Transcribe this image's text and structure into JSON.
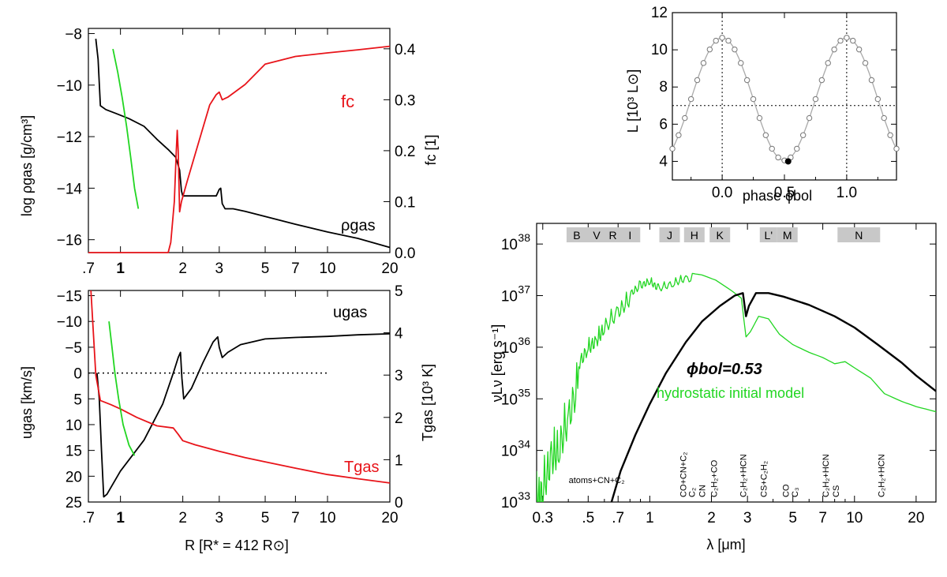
{
  "colors": {
    "black": "#000000",
    "red": "#e8141a",
    "green": "#22d622",
    "grey": "#aaaaaa",
    "band": "#c8c8c8"
  },
  "chart_data": [
    {
      "id": "top-left",
      "type": "line",
      "title": "",
      "xlabel": "",
      "xscale": "log",
      "xlim": [
        0.7,
        20
      ],
      "x_ticklabels": [
        ".7",
        "1",
        "2",
        "3",
        "5",
        "7",
        "10",
        "20"
      ],
      "ylabel": "log ρgas   [g/cm³]",
      "ylim": [
        -16.5,
        -7.8
      ],
      "y_ticklabels": [
        "-16",
        "-14",
        "-12",
        "-10",
        "-8"
      ],
      "y2label": "fc   [1]",
      "y2lim": [
        0,
        0.44
      ],
      "y2_ticklabels": [
        "0.0",
        "0.1",
        "0.2",
        "0.3",
        "0.4"
      ],
      "annotations": [
        "fc",
        "ρgas"
      ],
      "series": [
        {
          "name": "ρgas",
          "axis": "left",
          "color": "#000000",
          "points": [
            [
              0.76,
              -8.2
            ],
            [
              0.78,
              -9.0
            ],
            [
              0.8,
              -10.8
            ],
            [
              0.85,
              -10.95
            ],
            [
              0.95,
              -11.1
            ],
            [
              1.1,
              -11.3
            ],
            [
              1.3,
              -11.6
            ],
            [
              1.5,
              -12.1
            ],
            [
              1.7,
              -12.5
            ],
            [
              1.85,
              -12.8
            ],
            [
              1.93,
              -13.3
            ],
            [
              1.97,
              -14.1
            ],
            [
              2.0,
              -14.3
            ],
            [
              2.3,
              -14.3
            ],
            [
              2.6,
              -14.3
            ],
            [
              2.9,
              -14.3
            ],
            [
              3.0,
              -14.05
            ],
            [
              3.05,
              -14.0
            ],
            [
              3.1,
              -14.6
            ],
            [
              3.2,
              -14.8
            ],
            [
              3.5,
              -14.8
            ],
            [
              4.0,
              -14.9
            ],
            [
              5,
              -15.1
            ],
            [
              7,
              -15.4
            ],
            [
              10,
              -15.7
            ],
            [
              14,
              -15.95
            ],
            [
              20,
              -16.3
            ]
          ]
        },
        {
          "name": "fc",
          "axis": "right",
          "color": "#e8141a",
          "points": [
            [
              0.7,
              0.0
            ],
            [
              1.7,
              0.0
            ],
            [
              1.75,
              0.02
            ],
            [
              1.82,
              0.1
            ],
            [
              1.86,
              0.2
            ],
            [
              1.88,
              0.24
            ],
            [
              1.9,
              0.2
            ],
            [
              1.93,
              0.08
            ],
            [
              1.97,
              0.1
            ],
            [
              2.1,
              0.14
            ],
            [
              2.4,
              0.22
            ],
            [
              2.7,
              0.29
            ],
            [
              2.9,
              0.31
            ],
            [
              3.0,
              0.315
            ],
            [
              3.1,
              0.3
            ],
            [
              3.3,
              0.305
            ],
            [
              4.0,
              0.33
            ],
            [
              5,
              0.37
            ],
            [
              7,
              0.385
            ],
            [
              10,
              0.392
            ],
            [
              14,
              0.398
            ],
            [
              20,
              0.405
            ]
          ]
        },
        {
          "name": "green",
          "axis": "left",
          "color": "#22d622",
          "points": [
            [
              0.92,
              -8.6
            ],
            [
              0.97,
              -9.5
            ],
            [
              1.02,
              -10.5
            ],
            [
              1.07,
              -11.6
            ],
            [
              1.12,
              -12.8
            ],
            [
              1.17,
              -14.0
            ],
            [
              1.22,
              -14.8
            ]
          ]
        }
      ]
    },
    {
      "id": "bottom-left",
      "type": "line",
      "title": "",
      "xlabel": "R    [R* = 412 R⊙]",
      "xscale": "log",
      "xlim": [
        0.7,
        20
      ],
      "x_ticklabels": [
        ".7",
        "1",
        "2",
        "3",
        "5",
        "7",
        "10",
        "20"
      ],
      "ylabel": "ugas    [km/s]",
      "ylim_inverted": [
        -16,
        25
      ],
      "y_ticklabels": [
        "-15",
        "-10",
        "-5",
        "0",
        "5",
        "10",
        "15",
        "20",
        "25"
      ],
      "y2label": "Tgas   [10³ K]",
      "y2lim": [
        0,
        5
      ],
      "y2_ticklabels": [
        "0",
        "1",
        "2",
        "3",
        "4",
        "5"
      ],
      "annotations": [
        "ugas",
        "Tgas"
      ],
      "series": [
        {
          "name": "ugas",
          "axis": "left",
          "color": "#000000",
          "points": [
            [
              0.77,
              0.0
            ],
            [
              0.79,
              5
            ],
            [
              0.81,
              15
            ],
            [
              0.83,
              24
            ],
            [
              0.86,
              23.5
            ],
            [
              1.0,
              19
            ],
            [
              1.3,
              13
            ],
            [
              1.6,
              6
            ],
            [
              1.8,
              0
            ],
            [
              1.9,
              -3
            ],
            [
              1.95,
              -4
            ],
            [
              1.98,
              1
            ],
            [
              2.02,
              5
            ],
            [
              2.2,
              3
            ],
            [
              2.5,
              -2
            ],
            [
              2.8,
              -6
            ],
            [
              2.95,
              -7
            ],
            [
              3.0,
              -5
            ],
            [
              3.1,
              -3
            ],
            [
              3.3,
              -4
            ],
            [
              3.8,
              -5.5
            ],
            [
              5,
              -6.6
            ],
            [
              7,
              -6.9
            ],
            [
              10,
              -7.1
            ],
            [
              14,
              -7.4
            ],
            [
              20,
              -7.6
            ]
          ]
        },
        {
          "name": "Tgas",
          "axis": "right",
          "color": "#e8141a",
          "points": [
            [
              0.72,
              5.0
            ],
            [
              0.74,
              4.0
            ],
            [
              0.76,
              3.0
            ],
            [
              0.8,
              2.4
            ],
            [
              0.9,
              2.3
            ],
            [
              1.0,
              2.2
            ],
            [
              1.2,
              2.0
            ],
            [
              1.5,
              1.8
            ],
            [
              1.8,
              1.75
            ],
            [
              1.9,
              1.6
            ],
            [
              2.0,
              1.45
            ],
            [
              2.3,
              1.35
            ],
            [
              3,
              1.2
            ],
            [
              4,
              1.05
            ],
            [
              5,
              0.95
            ],
            [
              7,
              0.8
            ],
            [
              10,
              0.65
            ],
            [
              14,
              0.55
            ],
            [
              20,
              0.45
            ]
          ]
        },
        {
          "name": "green",
          "axis": "left",
          "color": "#22d622",
          "points": [
            [
              0.88,
              -10
            ],
            [
              0.91,
              -5
            ],
            [
              0.94,
              0
            ],
            [
              0.98,
              5
            ],
            [
              1.03,
              10
            ],
            [
              1.1,
              14
            ],
            [
              1.17,
              16
            ]
          ]
        }
      ]
    },
    {
      "id": "top-right",
      "type": "line",
      "title": "",
      "xlabel": "phase ϕbol",
      "xlim": [
        -0.4,
        1.4
      ],
      "x_ticklabels": [
        "0.0",
        "0.5",
        "1.0"
      ],
      "ylabel": "L   [10³ L⊙]",
      "ylim": [
        3,
        12
      ],
      "y_ticklabels": [
        "4",
        "6",
        "8",
        "10",
        "12"
      ],
      "guides": {
        "vlines": [
          0.0,
          1.0
        ],
        "hline": 7.0
      },
      "highlight_point": [
        0.53,
        4.0
      ],
      "series": [
        {
          "name": "L",
          "color": "#aaaaaa",
          "mean": 7.35,
          "amplitude": 3.3,
          "period": 1.0,
          "sample_phases": [
            -0.4,
            -0.35,
            -0.3,
            -0.25,
            -0.2,
            -0.15,
            -0.1,
            -0.05,
            0.0,
            0.05,
            0.1,
            0.15,
            0.2,
            0.25,
            0.3,
            0.35,
            0.4,
            0.45,
            0.5,
            0.55,
            0.6,
            0.65,
            0.7,
            0.75,
            0.8,
            0.85,
            0.9,
            0.95,
            1.0,
            1.05,
            1.1,
            1.15,
            1.2,
            1.25,
            1.3,
            1.35,
            1.4
          ]
        }
      ]
    },
    {
      "id": "bottom-right",
      "type": "line",
      "title": "",
      "xlabel": "λ    [μm]",
      "xscale": "log",
      "xlim": [
        0.28,
        25
      ],
      "x_ticklabels": [
        "0.3",
        ".5",
        ".7",
        "1",
        "2",
        "3",
        "5",
        "7",
        "10",
        "20"
      ],
      "ylabel": "νLν    [erg s⁻¹]",
      "yscale": "log",
      "ylim": [
        33,
        38.4
      ],
      "y_ticklabels": [
        "10",
        "10",
        "10",
        "10",
        "10",
        "10"
      ],
      "y_tickexp": [
        "33",
        "34",
        "35",
        "36",
        "37",
        "38"
      ],
      "bands": [
        {
          "label": "B",
          "lam": 0.44
        },
        {
          "label": "V",
          "lam": 0.55
        },
        {
          "label": "R",
          "lam": 0.66
        },
        {
          "label": "I",
          "lam": 0.8
        },
        {
          "label": "J",
          "lam": 1.25
        },
        {
          "label": "H",
          "lam": 1.65
        },
        {
          "label": "K",
          "lam": 2.2
        },
        {
          "label": "L'",
          "lam": 3.8
        },
        {
          "label": "M",
          "lam": 4.7
        },
        {
          "label": "N",
          "lam": 10.5
        }
      ],
      "molecule_labels": [
        {
          "text": "atoms+CN+C₂",
          "lam": 0.55
        },
        {
          "text": "CO+CN+C₂",
          "lam": 1.45
        },
        {
          "text": "C₂",
          "lam": 1.6
        },
        {
          "text": "CN",
          "lam": 1.8
        },
        {
          "text": "C₂H₂+CO",
          "lam": 2.05
        },
        {
          "text": "C₂H₂+HCN",
          "lam": 2.85
        },
        {
          "text": "CS+C₂H₂",
          "lam": 3.6
        },
        {
          "text": "CO",
          "lam": 4.6
        },
        {
          "text": "C₃",
          "lam": 5.1
        },
        {
          "text": "C₂H₂+HCN",
          "lam": 7.2
        },
        {
          "text": "CS",
          "lam": 8.1
        },
        {
          "text": "C₂H₂+HCN",
          "lam": 13.5
        }
      ],
      "annotations": [
        "ϕbol=0.53",
        "hydrostatic initial model"
      ],
      "series": [
        {
          "name": "ϕbol=0.53",
          "color": "#000000",
          "points": [
            [
              0.65,
              33.0
            ],
            [
              0.72,
              33.6
            ],
            [
              0.85,
              34.3
            ],
            [
              1.0,
              34.9
            ],
            [
              1.2,
              35.5
            ],
            [
              1.5,
              36.1
            ],
            [
              1.8,
              36.5
            ],
            [
              2.2,
              36.8
            ],
            [
              2.6,
              37.0
            ],
            [
              2.85,
              37.05
            ],
            [
              2.95,
              36.6
            ],
            [
              3.05,
              36.8
            ],
            [
              3.3,
              37.05
            ],
            [
              3.8,
              37.05
            ],
            [
              4.5,
              36.98
            ],
            [
              6,
              36.82
            ],
            [
              8,
              36.6
            ],
            [
              10,
              36.38
            ],
            [
              13,
              36.05
            ],
            [
              17,
              35.7
            ],
            [
              20,
              35.45
            ],
            [
              25,
              35.15
            ]
          ]
        },
        {
          "name": "hydrostatic initial model",
          "color": "#22d622",
          "points": [
            [
              0.28,
              33.6
            ],
            [
              0.3,
              33.8
            ],
            [
              0.33,
              34.4
            ],
            [
              0.36,
              34.6
            ],
            [
              0.4,
              35.2
            ],
            [
              0.45,
              35.9
            ],
            [
              0.5,
              36.2
            ],
            [
              0.55,
              36.35
            ],
            [
              0.6,
              36.6
            ],
            [
              0.7,
              36.9
            ],
            [
              0.8,
              37.15
            ],
            [
              0.9,
              37.3
            ],
            [
              1.0,
              37.4
            ],
            [
              1.1,
              37.25
            ],
            [
              1.3,
              37.35
            ],
            [
              1.5,
              37.45
            ],
            [
              1.8,
              37.4
            ],
            [
              2.1,
              37.3
            ],
            [
              2.5,
              37.1
            ],
            [
              2.8,
              36.95
            ],
            [
              2.95,
              36.2
            ],
            [
              3.1,
              36.3
            ],
            [
              3.4,
              36.6
            ],
            [
              3.8,
              36.55
            ],
            [
              4.3,
              36.25
            ],
            [
              5,
              36.05
            ],
            [
              6,
              35.9
            ],
            [
              7,
              35.8
            ],
            [
              8,
              35.68
            ],
            [
              9,
              35.72
            ],
            [
              10,
              35.6
            ],
            [
              12,
              35.4
            ],
            [
              14,
              35.1
            ],
            [
              17,
              34.95
            ],
            [
              20,
              34.85
            ],
            [
              25,
              34.75
            ]
          ]
        }
      ]
    }
  ]
}
